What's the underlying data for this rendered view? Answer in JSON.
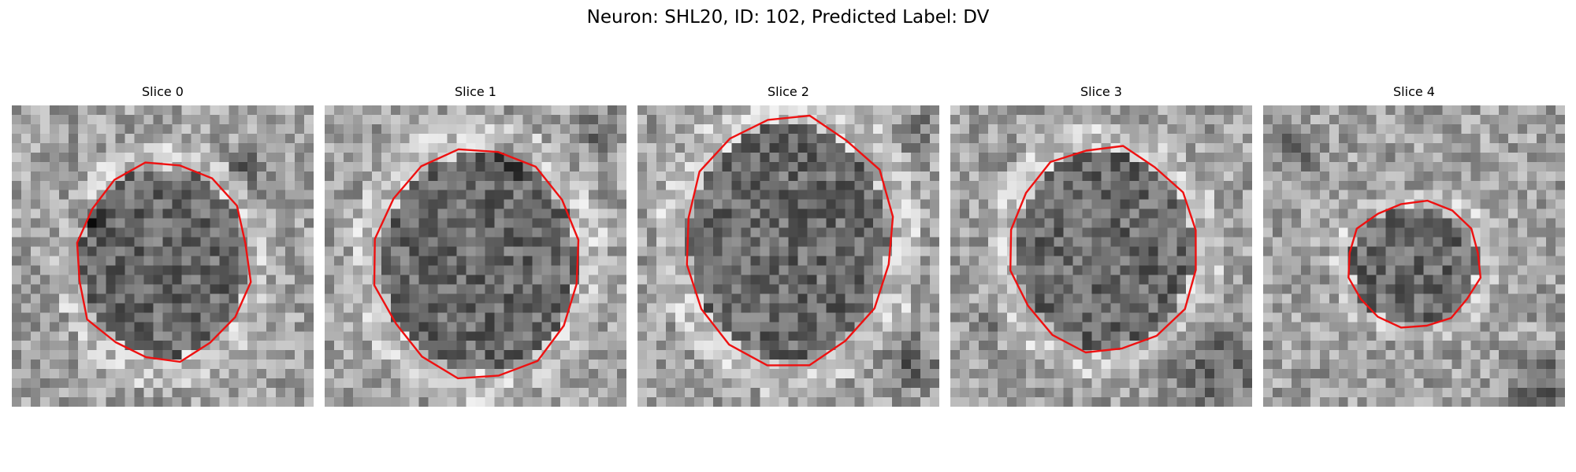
{
  "figure": {
    "title": "Neuron: SHL20, ID: 102, Predicted Label: DV",
    "colors": {
      "contour": "#ee1111",
      "colormap": "grayscale"
    }
  },
  "slices": [
    {
      "title": "Slice 0"
    },
    {
      "title": "Slice 1"
    },
    {
      "title": "Slice 2"
    },
    {
      "title": "Slice 3"
    },
    {
      "title": "Slice 4"
    }
  ]
}
